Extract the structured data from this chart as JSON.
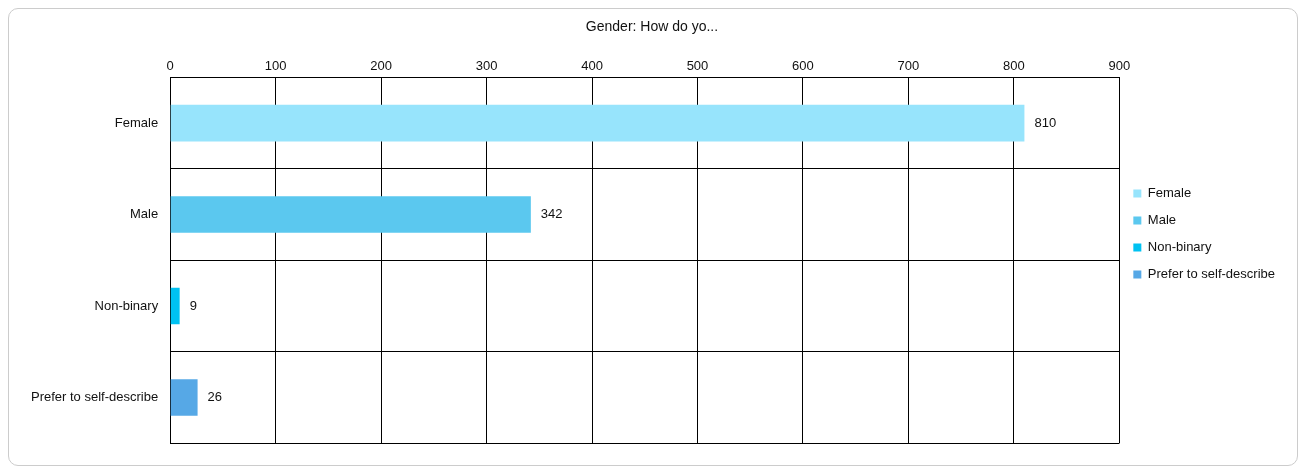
{
  "chart_data": {
    "type": "bar",
    "orientation": "horizontal",
    "title": "Gender: How do yo...",
    "categories": [
      "Female",
      "Male",
      "Non-binary",
      "Prefer to self-describe"
    ],
    "series": [
      {
        "name": "Female",
        "color": "#97e4fc",
        "values": [
          810,
          null,
          null,
          null
        ]
      },
      {
        "name": "Male",
        "color": "#5bc8ef",
        "values": [
          null,
          342,
          null,
          null
        ]
      },
      {
        "name": "Non-binary",
        "color": "#00c2f2",
        "values": [
          null,
          null,
          9,
          null
        ]
      },
      {
        "name": "Prefer to self-describe",
        "color": "#56a8e6",
        "values": [
          null,
          null,
          null,
          26
        ]
      }
    ],
    "xlim": [
      0,
      900
    ],
    "xticks": [
      0,
      100,
      200,
      300,
      400,
      500,
      600,
      700,
      800,
      900
    ],
    "grid": true,
    "legend": "right",
    "data_labels": true
  }
}
